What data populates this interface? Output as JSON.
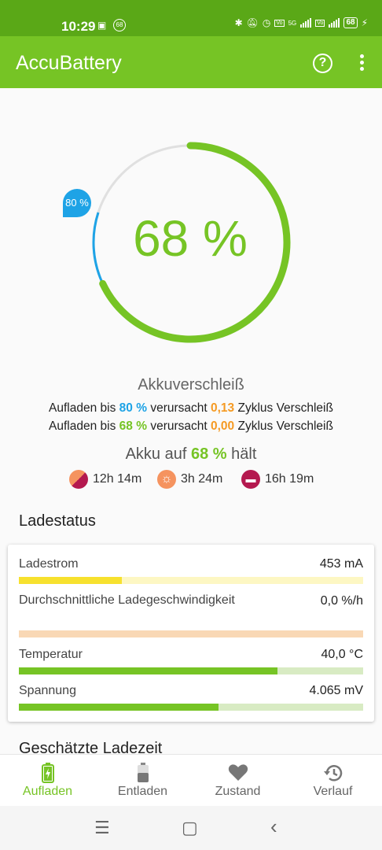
{
  "status_bar": {
    "time": "10:29",
    "icons": [
      "sim-icon",
      "notification-count-icon",
      "bluetooth-icon",
      "mute-icon",
      "alarm-icon",
      "volte-icon",
      "signal-icon",
      "volte-icon",
      "signal-icon"
    ],
    "notif_count": "68",
    "network_1": "5G",
    "battery_level": "68"
  },
  "app_bar": {
    "title": "AccuBattery",
    "help_label": "?",
    "accent": "#76c425"
  },
  "gauge": {
    "percent_text": "68 %",
    "level": 68,
    "target_text": "80 %",
    "target_level": 80,
    "colors": {
      "level": "#76c425",
      "target": "#1ea3e6",
      "track": "#e0e0e0"
    }
  },
  "wear": {
    "title": "Akkuverschleiß",
    "line1": {
      "prefix": "Aufladen bis ",
      "level": "80 %",
      "mid": " verursacht ",
      "value": "0,13",
      "suffix": " Zyklus Verschleiß"
    },
    "line2": {
      "prefix": "Aufladen bis ",
      "level": "68 %",
      "mid": " verursacht ",
      "value": "0,00",
      "suffix": " Zyklus Verschleiß"
    }
  },
  "hold": {
    "prefix": "Akku auf ",
    "level": "68 %",
    "suffix": " hält",
    "items": [
      {
        "icon": "mixed-usage-icon",
        "value": "12h 14m"
      },
      {
        "icon": "screen-on-icon",
        "value": "3h 24m"
      },
      {
        "icon": "sleep-icon",
        "value": "16h 19m"
      }
    ]
  },
  "ladestatus": {
    "title": "Ladestatus",
    "rows": [
      {
        "label": "Ladestrom",
        "value": "453 mA",
        "fill": 0.3,
        "fill_color": "#f7e12e",
        "track_color": "#fdf7c3"
      },
      {
        "label": "Durchschnittliche Ladegeschwindigkeit",
        "value": "0,0 %/h",
        "fill": 0.0,
        "fill_color": "#f5935f",
        "track_color": "#f9d8b5"
      },
      {
        "label": "Temperatur",
        "value": "40,0 °C",
        "fill": 0.75,
        "fill_color": "#76c425",
        "track_color": "#d8ebc3"
      },
      {
        "label": "Spannung",
        "value": "4.065 mV",
        "fill": 0.58,
        "fill_color": "#76c425",
        "track_color": "#d8ebc3"
      }
    ]
  },
  "next_section": {
    "title": "Geschätzte Ladezeit"
  },
  "bottom_nav": {
    "items": [
      {
        "label": "Aufladen",
        "icon": "charging-icon",
        "active": true
      },
      {
        "label": "Entladen",
        "icon": "battery-icon",
        "active": false
      },
      {
        "label": "Zustand",
        "icon": "heart-icon",
        "active": false
      },
      {
        "label": "Verlauf",
        "icon": "history-icon",
        "active": false
      }
    ],
    "active_color": "#76c425"
  },
  "system_nav": {
    "recents": "☰",
    "home": "▢",
    "back": "‹"
  }
}
